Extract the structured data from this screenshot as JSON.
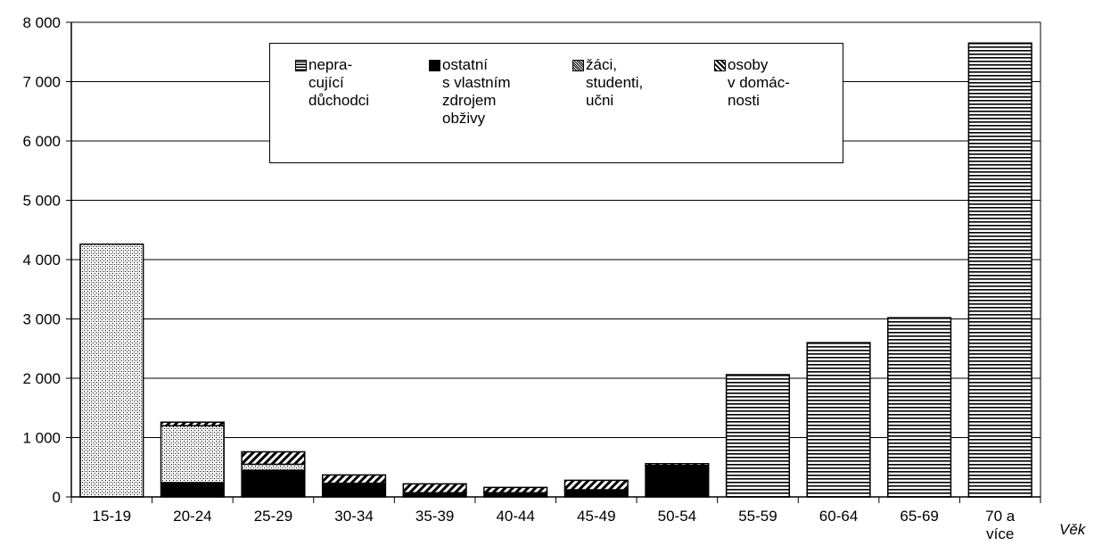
{
  "chart_data": {
    "type": "bar",
    "stacked": true,
    "categories": [
      "15-19",
      "20-24",
      "25-29",
      "30-34",
      "35-39",
      "40-44",
      "45-49",
      "50-54",
      "55-59",
      "60-64",
      "65-69",
      "70 a více"
    ],
    "series": [
      {
        "name": "nepra-\ncující\ndůchodci",
        "pattern": "hstripe",
        "values": [
          0,
          0,
          0,
          0,
          0,
          0,
          0,
          0,
          2060,
          2600,
          3020,
          7650
        ]
      },
      {
        "name": "ostatní\ns vlastním\nzdrojem\nobživy",
        "pattern": "solid",
        "values": [
          0,
          240,
          450,
          230,
          70,
          70,
          120,
          530,
          0,
          0,
          0,
          0
        ]
      },
      {
        "name": "žáci,\nstudenti,\nučni",
        "pattern": "dots",
        "values": [
          4260,
          960,
          100,
          0,
          0,
          0,
          0,
          0,
          0,
          0,
          0,
          0
        ]
      },
      {
        "name": "osoby\nv domác-\nnosti",
        "pattern": "diag",
        "values": [
          0,
          60,
          210,
          140,
          150,
          90,
          160,
          30,
          0,
          0,
          0,
          0
        ]
      }
    ],
    "ylim": [
      0,
      8000
    ],
    "yticks": [
      "0",
      "1 000",
      "2 000",
      "3 000",
      "4 000",
      "5 000",
      "6 000",
      "7 000",
      "8 000"
    ],
    "xlabel": "Věk",
    "ylabel": "",
    "grid": true,
    "legend_position": "top-center"
  }
}
